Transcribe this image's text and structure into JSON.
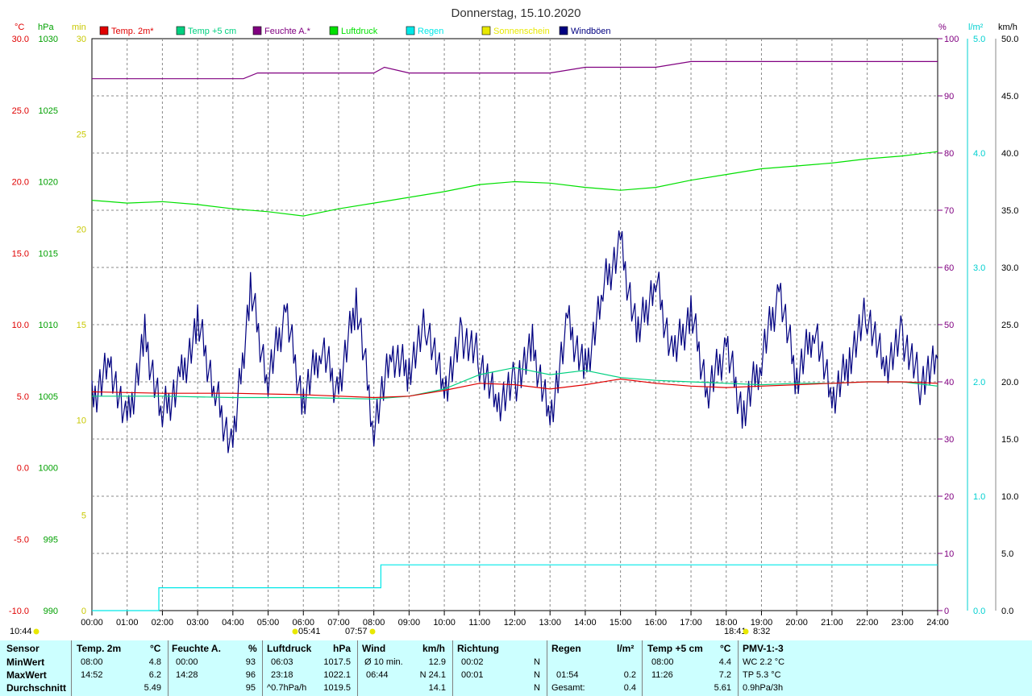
{
  "title": "Donnerstag, 15.10.2020",
  "colors": {
    "temp2m": "#e00000",
    "temp5cm": "#00d080",
    "humidity": "#800080",
    "pressure": "#00e000",
    "rain": "#00e8e8",
    "sun": "#e8e800",
    "gust": "#000080"
  },
  "legend": [
    {
      "label": "Temp. 2m*",
      "color": "#e00000"
    },
    {
      "label": "Temp +5 cm",
      "color": "#00d080"
    },
    {
      "label": "Feuchte A.*",
      "color": "#800080"
    },
    {
      "label": "Luftdruck",
      "color": "#00e000"
    },
    {
      "label": "Regen",
      "color": "#00e8e8"
    },
    {
      "label": "Sonnenschein",
      "color": "#e8e800"
    },
    {
      "label": "Windböen",
      "color": "#000080"
    }
  ],
  "axes": {
    "temp": {
      "unit": "°C",
      "ticks": [
        "30.0",
        "25.0",
        "20.0",
        "15.0",
        "10.0",
        "5.0",
        "0.0",
        "-5.0",
        "-10.0"
      ],
      "color": "#e00000"
    },
    "pressure": {
      "unit": "hPa",
      "ticks": [
        "1030",
        "1025",
        "1020",
        "1015",
        "1010",
        "1005",
        "1000",
        "995",
        "990"
      ],
      "color": "#00a000"
    },
    "sunmin": {
      "unit": "min",
      "ticks": [
        "30",
        "25",
        "20",
        "15",
        "10",
        "5",
        "0"
      ],
      "color": "#c8c800"
    },
    "humidity": {
      "unit": "%",
      "ticks": [
        "100",
        "90",
        "80",
        "70",
        "60",
        "50",
        "40",
        "30",
        "20",
        "10",
        "0"
      ],
      "color": "#800080"
    },
    "rain": {
      "unit": "l/m²",
      "ticks": [
        "5.0",
        "4.0",
        "3.0",
        "2.0",
        "1.0",
        "0.0"
      ],
      "color": "#00d0d0"
    },
    "wind": {
      "unit": "km/h",
      "ticks": [
        "50.0",
        "45.0",
        "40.0",
        "35.0",
        "30.0",
        "25.0",
        "20.0",
        "15.0",
        "10.0",
        "5.0",
        "0.0"
      ],
      "color": "#000000"
    },
    "time_ticks": [
      "00:00",
      "01:00",
      "02:00",
      "03:00",
      "04:00",
      "05:00",
      "06:00",
      "07:00",
      "08:00",
      "09:00",
      "10:00",
      "11:00",
      "12:00",
      "13:00",
      "14:00",
      "15:00",
      "16:00",
      "17:00",
      "18:00",
      "19:00",
      "20:00",
      "21:00",
      "22:00",
      "23:00",
      "24:00"
    ]
  },
  "sun_markers": {
    "duration": "10:44",
    "sunrise": "05:41",
    "sun_start": "07:57",
    "sun_end": "18:41",
    "sunset": "8:32"
  },
  "chart_data": {
    "type": "line",
    "x_unit": "hours",
    "xlim": [
      0,
      24
    ],
    "series": [
      {
        "name": "Temp. 2m*",
        "axis": "temp",
        "x": [
          0,
          2,
          4,
          6,
          8,
          9,
          10,
          11,
          12,
          13,
          14,
          15,
          16,
          17,
          18,
          19,
          20,
          21,
          22,
          23,
          24
        ],
        "values": [
          5.3,
          5.2,
          5.2,
          5.1,
          4.9,
          5.0,
          5.4,
          5.9,
          5.8,
          5.5,
          5.8,
          6.2,
          5.9,
          5.7,
          5.6,
          5.7,
          5.8,
          5.9,
          6.0,
          6.0,
          5.9
        ]
      },
      {
        "name": "Temp +5 cm",
        "axis": "temp",
        "x": [
          0,
          2,
          4,
          6,
          8,
          9,
          10,
          11,
          12,
          13,
          14,
          15,
          16,
          17,
          18,
          19,
          20,
          21,
          22,
          23,
          24
        ],
        "values": [
          5.0,
          5.0,
          4.9,
          4.9,
          4.8,
          5.0,
          5.5,
          6.5,
          7.0,
          6.5,
          6.8,
          6.3,
          6.1,
          6.0,
          5.9,
          5.8,
          5.9,
          5.9,
          6.0,
          6.0,
          5.7
        ]
      },
      {
        "name": "Feuchte A.*",
        "axis": "humidity",
        "x": [
          0,
          4.3,
          4.7,
          6,
          8,
          8.3,
          9,
          10,
          11,
          12,
          13,
          14,
          15,
          16,
          17,
          17.5,
          24
        ],
        "values": [
          93,
          93,
          94,
          94,
          94,
          95,
          94,
          94,
          94,
          94,
          94,
          95,
          95,
          95,
          96,
          96,
          96
        ]
      },
      {
        "name": "Luftdruck",
        "axis": "pressure",
        "x": [
          0,
          1,
          2,
          3,
          4,
          5,
          6,
          7,
          8,
          9,
          10,
          11,
          12,
          13,
          14,
          15,
          16,
          17,
          18,
          19,
          20,
          21,
          22,
          23,
          24
        ],
        "values": [
          1018.7,
          1018.5,
          1018.6,
          1018.4,
          1018.1,
          1017.9,
          1017.6,
          1018.1,
          1018.5,
          1018.9,
          1019.3,
          1019.8,
          1020.0,
          1019.9,
          1019.6,
          1019.4,
          1019.6,
          1020.1,
          1020.5,
          1020.9,
          1021.1,
          1021.3,
          1021.6,
          1021.8,
          1022.1
        ]
      },
      {
        "name": "Regen",
        "axis": "rain",
        "x": [
          0,
          1.9,
          1.9,
          8.2,
          8.2,
          24
        ],
        "values": [
          0,
          0,
          0.2,
          0.2,
          0.4,
          0.4
        ]
      },
      {
        "name": "Windböen",
        "axis": "wind",
        "x": [
          0,
          0.5,
          1,
          1.5,
          2,
          2.5,
          3,
          3.5,
          4,
          4.5,
          5,
          5.5,
          6,
          6.5,
          7,
          7.5,
          8,
          8.5,
          9,
          9.5,
          10,
          10.5,
          11,
          11.5,
          12,
          12.5,
          13,
          13.5,
          14,
          14.5,
          15,
          15.5,
          16,
          16.5,
          17,
          17.5,
          18,
          18.5,
          19,
          19.5,
          20,
          20.5,
          21,
          21.5,
          22,
          22.5,
          23,
          23.5,
          24
        ],
        "values": [
          18,
          22,
          16,
          24,
          17,
          20,
          25,
          19,
          14,
          28,
          20,
          26,
          18,
          23,
          19,
          27,
          16,
          22,
          21,
          25,
          19,
          24,
          22,
          18,
          20,
          23,
          17,
          25,
          21,
          28,
          32,
          24,
          29,
          22,
          26,
          19,
          23,
          17,
          22,
          28,
          20,
          25,
          18,
          22,
          26,
          21,
          24,
          20,
          22
        ]
      }
    ]
  },
  "table": {
    "headers": [
      {
        "label": "Sensor",
        "unit": ""
      },
      {
        "label": "Temp. 2m",
        "unit": "°C"
      },
      {
        "label": "Feuchte A.",
        "unit": "%"
      },
      {
        "label": "Luftdruck",
        "unit": "hPa"
      },
      {
        "label": "Wind",
        "unit": "km/h"
      },
      {
        "label": "Richtung",
        "unit": ""
      },
      {
        "label": "Regen",
        "unit": "l/m²"
      },
      {
        "label": "Temp +5 cm",
        "unit": "°C"
      },
      {
        "label": "PMV-1:-3",
        "unit": ""
      }
    ],
    "row_labels": [
      "MinWert",
      "MaxWert",
      "Durchschnitt"
    ],
    "temp2m": {
      "min_time": "08:00",
      "min": "4.8",
      "max_time": "14:52",
      "max": "6.2",
      "avg": "5.49"
    },
    "humidity": {
      "min_time": "00:00",
      "min": "93",
      "max_time": "14:28",
      "max": "96",
      "avg": "95"
    },
    "pressure": {
      "min_time": "06:03",
      "min": "1017.5",
      "max_time": "23:18",
      "max": "1022.1",
      "trend": "^0.7hPa/h",
      "avg": "1019.5"
    },
    "wind": {
      "row1_label": "Ø 10 min.",
      "row1": "12.9",
      "row2_time": "06:44",
      "row2": "N 24.1",
      "avg": "14.1"
    },
    "direction": {
      "min_time": "00:02",
      "min": "N",
      "max_time": "00:01",
      "max": "N",
      "avg": "N"
    },
    "rain": {
      "max_time": "01:54",
      "max": "0.2",
      "total_label": "Gesamt:",
      "total": "0.4"
    },
    "temp5cm": {
      "min_time": "08:00",
      "min": "4.4",
      "max_time": "11:26",
      "max": "7.2",
      "avg": "5.61"
    },
    "pmv": {
      "wc": "WC 2.2 °C",
      "tp": "TP 5.3 °C",
      "trend": "0.9hPa/3h"
    }
  }
}
